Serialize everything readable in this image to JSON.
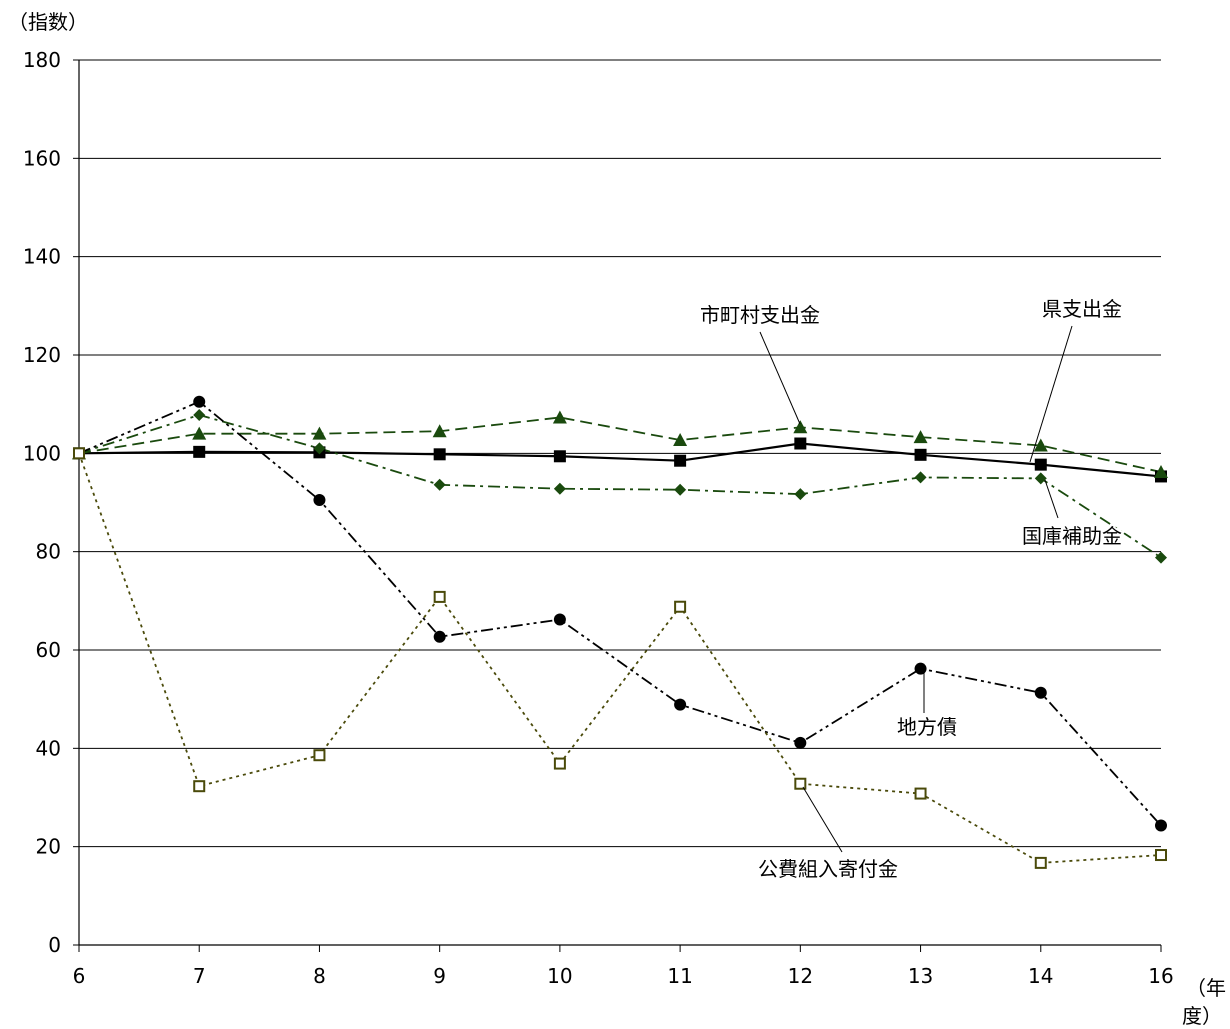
{
  "chart_data": {
    "type": "line",
    "ylabel": "（指数）",
    "xlabel": [
      "（年",
      "度）"
    ],
    "categories": [
      "6",
      "7",
      "8",
      "9",
      "10",
      "11",
      "12",
      "13",
      "14",
      "16"
    ],
    "ylim": [
      0,
      180
    ],
    "yticks": [
      0,
      20,
      40,
      60,
      80,
      100,
      120,
      140,
      160,
      180
    ],
    "grid": true,
    "series": [
      {
        "name": "県支出金",
        "values": [
          100,
          100.3,
          100.2,
          99.8,
          99.4,
          98.5,
          102,
          99.7,
          97.7,
          95.3
        ],
        "color": "#000000",
        "marker": "square",
        "dash": "solid"
      },
      {
        "name": "市町村支出金",
        "values": [
          100,
          104,
          104,
          104.5,
          107.3,
          102.7,
          105.3,
          103.3,
          101.6,
          96.2
        ],
        "color": "#1a4a0e",
        "marker": "triangle",
        "dash": "dashed"
      },
      {
        "name": "国庫補助金",
        "values": [
          100,
          107.8,
          101,
          93.6,
          92.8,
          92.6,
          91.7,
          95.1,
          94.9,
          78.8
        ],
        "color": "#1a4a0e",
        "marker": "diamond",
        "dash": "dashdot"
      },
      {
        "name": "地方債",
        "values": [
          100,
          110.5,
          90.5,
          62.7,
          66.2,
          48.9,
          41.1,
          56.2,
          51.3,
          24.3
        ],
        "color": "#000000",
        "marker": "circle",
        "dash": "dashdotdot"
      },
      {
        "name": "公費組入寄付金",
        "values": [
          100,
          32.3,
          38.6,
          70.8,
          36.9,
          68.8,
          32.8,
          30.8,
          16.7,
          18.3
        ],
        "color": "#4a4a0a",
        "marker": "opensquare",
        "dash": "dotted"
      }
    ],
    "annotations": [
      {
        "text": "市町村支出金"
      },
      {
        "text": "県支出金"
      },
      {
        "text": "国庫補助金"
      },
      {
        "text": "地方債"
      },
      {
        "text": "公費組入寄付金"
      }
    ]
  }
}
